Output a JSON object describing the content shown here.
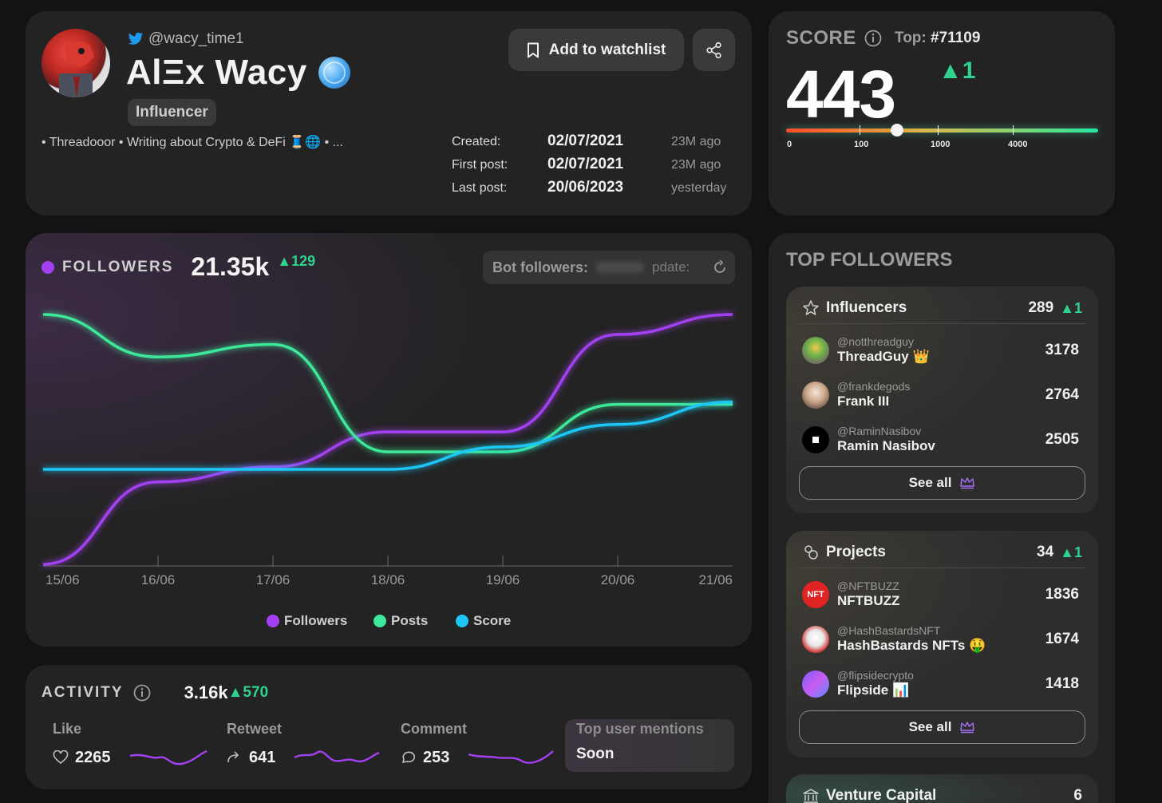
{
  "profile": {
    "handle": "@wacy_time1",
    "name": "AlΞx Wacy",
    "badge": "Influencer",
    "bio": "• Threadooor • Writing about Crypto & DeFi 🧵🌐 • ...",
    "watchlist_label": "Add to watchlist",
    "dates": [
      {
        "label": "Created:",
        "value": "02/07/2021",
        "ago": "23M ago"
      },
      {
        "label": "First post:",
        "value": "02/07/2021",
        "ago": "23M ago"
      },
      {
        "label": "Last post:",
        "value": "20/06/2023",
        "ago": "yesterday"
      }
    ]
  },
  "score": {
    "title": "SCORE",
    "top_label": "Top:",
    "top_rank": "#71109",
    "value": "443",
    "delta": "▲1",
    "scale_labels": [
      "0",
      "100",
      "1000",
      "4000"
    ]
  },
  "followers": {
    "label": "FOLLOWERS",
    "value": "21.35k",
    "delta": "▲129",
    "bot_label": "Bot followers:",
    "bot_update": "pdate:",
    "legend": [
      "Followers",
      "Posts",
      "Score"
    ],
    "colors": {
      "followers": "#a340f2",
      "posts": "#3ee89a",
      "score": "#1ec6f5"
    }
  },
  "chart_data": {
    "type": "line",
    "x": [
      "15/06",
      "16/06",
      "17/06",
      "18/06",
      "19/06",
      "20/06",
      "21/06"
    ],
    "series": [
      {
        "name": "Followers",
        "values": [
          0,
          0.33,
          0.39,
          0.53,
          0.53,
          0.92,
          1.0
        ]
      },
      {
        "name": "Posts",
        "values": [
          1.0,
          0.83,
          0.88,
          0.45,
          0.45,
          0.64,
          0.64
        ]
      },
      {
        "name": "Score",
        "values": [
          0.38,
          0.38,
          0.38,
          0.38,
          0.47,
          0.56,
          0.65
        ]
      }
    ],
    "xlabel": "",
    "ylabel": "",
    "grid": false,
    "legend": "bottom"
  },
  "activity": {
    "label": "ACTIVITY",
    "value": "3.16k",
    "delta": "▲570",
    "metrics": [
      {
        "title": "Like",
        "value": "2265"
      },
      {
        "title": "Retweet",
        "value": "641"
      },
      {
        "title": "Comment",
        "value": "253"
      }
    ],
    "mentions_title": "Top user mentions",
    "mentions_status": "Soon"
  },
  "top_followers": {
    "title": "TOP FOLLOWERS",
    "groups": [
      {
        "title": "Influencers",
        "count": "289",
        "delta": "▲1",
        "items": [
          {
            "handle": "@notthreadguy",
            "name": "ThreadGuy 👑",
            "value": "3178"
          },
          {
            "handle": "@frankdegods",
            "name": "Frank III",
            "value": "2764"
          },
          {
            "handle": "@RaminNasibov",
            "name": "Ramin Nasibov",
            "value": "2505"
          }
        ],
        "see_all": "See all"
      },
      {
        "title": "Projects",
        "count": "34",
        "delta": "▲1",
        "items": [
          {
            "handle": "@NFTBUZZ",
            "name": "NFTBUZZ",
            "value": "1836"
          },
          {
            "handle": "@HashBastardsNFT",
            "name": "HashBastards NFTs 🤑",
            "value": "1674"
          },
          {
            "handle": "@flipsidecrypto",
            "name": "Flipside 📊",
            "value": "1418"
          }
        ],
        "see_all": "See all"
      },
      {
        "title": "Venture Capital",
        "count": "6"
      }
    ]
  },
  "icons": [
    "twitter-bird-icon",
    "globe-icon",
    "bookmark-icon",
    "share-icon",
    "info-icon",
    "refresh-icon",
    "heart-icon",
    "retweet-icon",
    "comment-icon",
    "star-icon",
    "projects-icon",
    "crown-icon",
    "bank-icon"
  ]
}
